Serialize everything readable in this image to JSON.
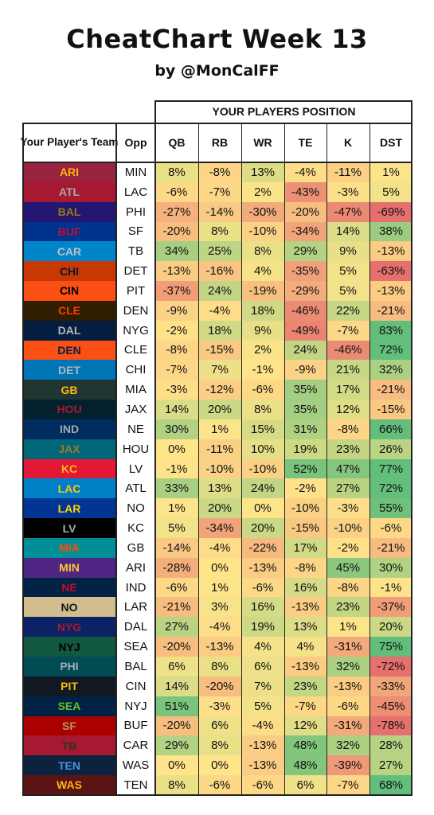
{
  "title": "CheatChart Week 13",
  "subtitle": "by @MonCalFF",
  "chart_data": {
    "type": "table",
    "group_header": "YOUR PLAYERS POSITION",
    "team_header": "Your Player's Team",
    "opp_header": "Opp",
    "positions": [
      "QB",
      "RB",
      "WR",
      "TE",
      "K",
      "DST"
    ],
    "rows": [
      {
        "team": "ARI",
        "opp": "MIN",
        "values": [
          8,
          -8,
          13,
          -4,
          -11,
          1
        ],
        "bg": "#97233F",
        "fg": "#FFB612"
      },
      {
        "team": "ATL",
        "opp": "LAC",
        "values": [
          -6,
          -7,
          2,
          -43,
          -3,
          5
        ],
        "bg": "#A71930",
        "fg": "#A5ACAF"
      },
      {
        "team": "BAL",
        "opp": "PHI",
        "values": [
          -27,
          -14,
          -30,
          -20,
          -47,
          -69
        ],
        "bg": "#241773",
        "fg": "#9E7C0C"
      },
      {
        "team": "BUF",
        "opp": "SF",
        "values": [
          -20,
          8,
          -10,
          -34,
          14,
          38
        ],
        "bg": "#00338D",
        "fg": "#C60C30"
      },
      {
        "team": "CAR",
        "opp": "TB",
        "values": [
          34,
          25,
          8,
          29,
          9,
          -13
        ],
        "bg": "#0085CA",
        "fg": "#BFC0BF"
      },
      {
        "team": "CHI",
        "opp": "DET",
        "values": [
          -13,
          -16,
          4,
          -35,
          5,
          -63
        ],
        "bg": "#C83803",
        "fg": "#0B162A"
      },
      {
        "team": "CIN",
        "opp": "PIT",
        "values": [
          -37,
          24,
          -19,
          -29,
          5,
          -13
        ],
        "bg": "#FB4F14",
        "fg": "#000000"
      },
      {
        "team": "CLE",
        "opp": "DEN",
        "values": [
          -9,
          -4,
          18,
          -46,
          22,
          -21
        ],
        "bg": "#311D00",
        "fg": "#FF3C00"
      },
      {
        "team": "DAL",
        "opp": "NYG",
        "values": [
          -2,
          18,
          9,
          -49,
          -7,
          83
        ],
        "bg": "#041E42",
        "fg": "#B0B7BC"
      },
      {
        "team": "DEN",
        "opp": "CLE",
        "values": [
          -8,
          -15,
          2,
          24,
          -46,
          72
        ],
        "bg": "#FB4F14",
        "fg": "#002244"
      },
      {
        "team": "DET",
        "opp": "CHI",
        "values": [
          -7,
          7,
          -1,
          -9,
          21,
          32
        ],
        "bg": "#0076B6",
        "fg": "#B0B7BC"
      },
      {
        "team": "GB",
        "opp": "MIA",
        "values": [
          -3,
          -12,
          -6,
          35,
          17,
          -21
        ],
        "bg": "#203731",
        "fg": "#FFB612"
      },
      {
        "team": "HOU",
        "opp": "JAX",
        "values": [
          14,
          20,
          8,
          35,
          12,
          -15
        ],
        "bg": "#03202F",
        "fg": "#A71930"
      },
      {
        "team": "IND",
        "opp": "NE",
        "values": [
          30,
          1,
          15,
          31,
          -8,
          66
        ],
        "bg": "#002C5F",
        "fg": "#A2AAAD"
      },
      {
        "team": "JAX",
        "opp": "HOU",
        "values": [
          0,
          -11,
          10,
          19,
          23,
          26
        ],
        "bg": "#006778",
        "fg": "#9F792C"
      },
      {
        "team": "KC",
        "opp": "LV",
        "values": [
          -1,
          -10,
          -10,
          52,
          47,
          77
        ],
        "bg": "#E31837",
        "fg": "#FFB81C"
      },
      {
        "team": "LAC",
        "opp": "ATL",
        "values": [
          33,
          13,
          24,
          -2,
          27,
          72
        ],
        "bg": "#0080C6",
        "fg": "#FFC20E"
      },
      {
        "team": "LAR",
        "opp": "NO",
        "values": [
          1,
          20,
          0,
          -10,
          -3,
          55
        ],
        "bg": "#003594",
        "fg": "#FFD100"
      },
      {
        "team": "LV",
        "opp": "KC",
        "values": [
          5,
          -34,
          20,
          -15,
          -10,
          -6
        ],
        "bg": "#000000",
        "fg": "#A5ACAF"
      },
      {
        "team": "MIA",
        "opp": "GB",
        "values": [
          -14,
          -4,
          -22,
          17,
          -2,
          -21
        ],
        "bg": "#008E97",
        "fg": "#FC4C02"
      },
      {
        "team": "MIN",
        "opp": "ARI",
        "values": [
          -28,
          0,
          -13,
          -8,
          45,
          30
        ],
        "bg": "#4F2683",
        "fg": "#FFC62F"
      },
      {
        "team": "NE",
        "opp": "IND",
        "values": [
          -6,
          1,
          -6,
          16,
          -8,
          -1
        ],
        "bg": "#002244",
        "fg": "#C60C30"
      },
      {
        "team": "NO",
        "opp": "LAR",
        "values": [
          -21,
          3,
          16,
          -13,
          23,
          -37
        ],
        "bg": "#D3BC8D",
        "fg": "#101820"
      },
      {
        "team": "NYG",
        "opp": "DAL",
        "values": [
          27,
          -4,
          19,
          13,
          1,
          20
        ],
        "bg": "#0B2265",
        "fg": "#A71930"
      },
      {
        "team": "NYJ",
        "opp": "SEA",
        "values": [
          -20,
          -13,
          4,
          4,
          -31,
          75
        ],
        "bg": "#125740",
        "fg": "#000000"
      },
      {
        "team": "PHI",
        "opp": "BAL",
        "values": [
          6,
          8,
          6,
          -13,
          32,
          -72
        ],
        "bg": "#004C54",
        "fg": "#A5ACAF"
      },
      {
        "team": "PIT",
        "opp": "CIN",
        "values": [
          14,
          -20,
          7,
          23,
          -13,
          -33
        ],
        "bg": "#101820",
        "fg": "#FFB612"
      },
      {
        "team": "SEA",
        "opp": "NYJ",
        "values": [
          51,
          -3,
          5,
          -7,
          -6,
          -45
        ],
        "bg": "#002244",
        "fg": "#69BE28"
      },
      {
        "team": "SF",
        "opp": "BUF",
        "values": [
          -20,
          6,
          -4,
          12,
          -31,
          -78
        ],
        "bg": "#AA0000",
        "fg": "#B3995D"
      },
      {
        "team": "TB",
        "opp": "CAR",
        "values": [
          29,
          8,
          -13,
          48,
          32,
          28
        ],
        "bg": "#A71930",
        "fg": "#322F2B"
      },
      {
        "team": "TEN",
        "opp": "WAS",
        "values": [
          0,
          0,
          -13,
          48,
          -39,
          27
        ],
        "bg": "#0C2340",
        "fg": "#4B92DB"
      },
      {
        "team": "WAS",
        "opp": "TEN",
        "values": [
          8,
          -6,
          -6,
          6,
          -7,
          68
        ],
        "bg": "#5A1414",
        "fg": "#FFB612"
      }
    ]
  }
}
